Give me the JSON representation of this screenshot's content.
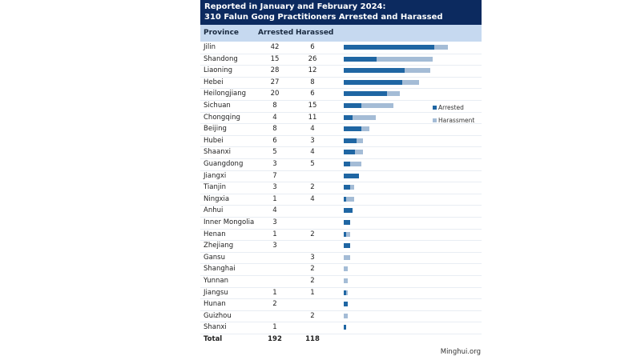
{
  "chart_data": {
    "type": "table",
    "title_line1": "Reported in January and February 2024:",
    "title_line2": "310 Falun Gong Practitioners Arrested and Harassed",
    "columns": [
      "Province",
      "Arrested",
      "Harassed"
    ],
    "rows": [
      {
        "province": "Jilin",
        "arrested": 42,
        "harassed": 6
      },
      {
        "province": "Shandong",
        "arrested": 15,
        "harassed": 26
      },
      {
        "province": "Liaoning",
        "arrested": 28,
        "harassed": 12
      },
      {
        "province": "Hebei",
        "arrested": 27,
        "harassed": 8
      },
      {
        "province": "Heilongjiang",
        "arrested": 20,
        "harassed": 6
      },
      {
        "province": "Sichuan",
        "arrested": 8,
        "harassed": 15
      },
      {
        "province": "Chongqing",
        "arrested": 4,
        "harassed": 11
      },
      {
        "province": "Beijing",
        "arrested": 8,
        "harassed": 4
      },
      {
        "province": "Hubei",
        "arrested": 6,
        "harassed": 3
      },
      {
        "province": "Shaanxi",
        "arrested": 5,
        "harassed": 4
      },
      {
        "province": "Guangdong",
        "arrested": 3,
        "harassed": 5
      },
      {
        "province": "Jiangxi",
        "arrested": 7,
        "harassed": null
      },
      {
        "province": "Tianjin",
        "arrested": 3,
        "harassed": 2
      },
      {
        "province": "Ningxia",
        "arrested": 1,
        "harassed": 4
      },
      {
        "province": "Anhui",
        "arrested": 4,
        "harassed": null
      },
      {
        "province": "Inner Mongolia",
        "arrested": 3,
        "harassed": null
      },
      {
        "province": "Henan",
        "arrested": 1,
        "harassed": 2
      },
      {
        "province": "Zhejiang",
        "arrested": 3,
        "harassed": null
      },
      {
        "province": "Gansu",
        "arrested": null,
        "harassed": 3
      },
      {
        "province": "Shanghai",
        "arrested": null,
        "harassed": 2
      },
      {
        "province": "Yunnan",
        "arrested": null,
        "harassed": 2
      },
      {
        "province": "Jiangsu",
        "arrested": 1,
        "harassed": 1
      },
      {
        "province": "Hunan",
        "arrested": 2,
        "harassed": null
      },
      {
        "province": "Guizhou",
        "arrested": null,
        "harassed": 2
      },
      {
        "province": "Shanxi",
        "arrested": 1,
        "harassed": null
      }
    ],
    "total": {
      "label": "Total",
      "arrested": 192,
      "harassed": 118
    },
    "legend": [
      "Arrested",
      "Harassment"
    ],
    "legend_placement": "right",
    "colors": {
      "arrested": "#1f66a3",
      "harassed": "#a4bcd6",
      "title_bg": "#0c2a5f",
      "header_bg": "#c6d9f0"
    },
    "source": "Minghui.org"
  }
}
